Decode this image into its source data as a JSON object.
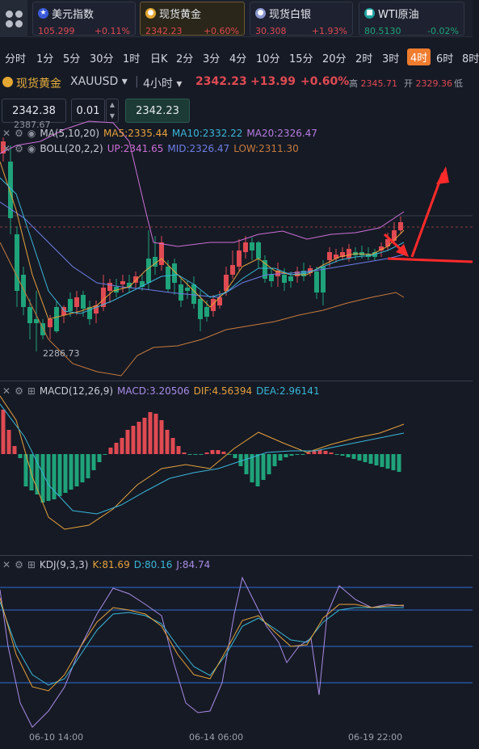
{
  "tickers": [
    {
      "name": "美元指数",
      "price": "105.299",
      "change": "+0.11%",
      "dir": "up",
      "icon": "us-flag-icon"
    },
    {
      "name": "现货黄金",
      "price": "2342.23",
      "change": "+0.60%",
      "dir": "up",
      "icon": "gold-icon"
    },
    {
      "name": "现货白银",
      "price": "30.308",
      "change": "+1.93%",
      "dir": "up",
      "icon": "silver-icon"
    },
    {
      "name": "WTI原油",
      "price": "80.5130",
      "change": "-0.02%",
      "dir": "down",
      "icon": "oil-icon"
    }
  ],
  "periods": [
    "分时",
    "1分",
    "5分",
    "30分",
    "1时",
    "日K",
    "2分",
    "3分",
    "4分",
    "10分",
    "15分",
    "20分",
    "2时",
    "3时",
    "4时",
    "6时",
    "8时"
  ],
  "selected_period": "4时",
  "symbol": {
    "name": "现货黄金",
    "code": "XAUUSD",
    "interval": "4小时",
    "price": "2342.23",
    "change": "+13.99",
    "percent": "+0.60%",
    "high_label": "高",
    "high": "2345.71",
    "open_label": "开",
    "open": "2329.36",
    "low_label": "低"
  },
  "order": {
    "sell": "2342.38",
    "lot": "0.01",
    "buy": "2342.23"
  },
  "main_chart": {
    "ma_label": "MA(5,10,20)",
    "ma5": "MA5:2335.44",
    "ma10": "MA10:2332.22",
    "ma20": "MA20:2326.47",
    "boll_label": "BOLL(20,2,2)",
    "up": "UP:2341.65",
    "mid": "MID:2326.47",
    "low": "LOW:2311.30",
    "high_mark": "2387.67",
    "low_mark": "2286.73"
  },
  "macd": {
    "label": "MACD(12,26,9)",
    "macd": "MACD:3.20506",
    "dif": "DIF:4.56394",
    "dea": "DEA:2.96141"
  },
  "kdj": {
    "label": "KDJ(9,3,3)",
    "k": "K:81.69",
    "d": "D:80.16",
    "j": "J:84.74"
  },
  "xaxis": [
    "06-10 14:00",
    "06-14 06:00",
    "06-19 22:00"
  ],
  "colors": {
    "up": "#e04a52",
    "down": "#1fa37a",
    "accent": "#f07c2e",
    "annotation": "#ff2a2a"
  }
}
